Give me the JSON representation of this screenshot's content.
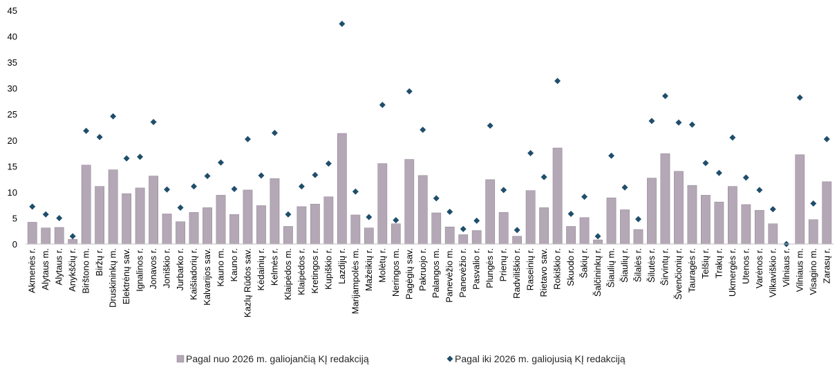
{
  "chart_data": {
    "type": "bar",
    "title": "",
    "xlabel": "",
    "ylabel": "",
    "ylim": [
      0,
      45
    ],
    "y_ticks": [
      0,
      5,
      10,
      15,
      20,
      25,
      30,
      35,
      40,
      45
    ],
    "grid": false,
    "legend_position": "bottom",
    "categories": [
      "Akmenės r.",
      "Alytaus m.",
      "Alytaus r.",
      "Anykščių r.",
      "Birštono m.",
      "Biržų r.",
      "Druskininkų m.",
      "Elektrėnų sav.",
      "Ignalinos r.",
      "Jonavos r.",
      "Joniškio r.",
      "Jurbarko r.",
      "Kaišiadorių r.",
      "Kalvarijos sav.",
      "Kauno m.",
      "Kauno r.",
      "Kazlų Rūdos sav.",
      "Kėdainių r.",
      "Kelmės r.",
      "Klaipėdos m.",
      "Klaipėdos r.",
      "Kretingos r.",
      "Kupiškio r.",
      "Lazdijų r.",
      "Marijampolės m.",
      "Mažeikių r.",
      "Molėtų r.",
      "Neringos m.",
      "Pagėgių sav.",
      "Pakruojo r.",
      "Palangos m.",
      "Panevėžio m.",
      "Panevėžio r.",
      "Pasvalio r.",
      "Plungės r.",
      "Prienų r.",
      "Radviliškio r.",
      "Raseinių r.",
      "Rietavo sav.",
      "Rokiškio r.",
      "Skuodo r.",
      "Šakių r.",
      "Šalčininkų r.",
      "Šiaulių m.",
      "Šiaulių r.",
      "Šilalės r.",
      "Šilutės r.",
      "Širvintų r.",
      "Švenčionių r.",
      "Tauragės r.",
      "Telšių r.",
      "Trakų r.",
      "Ukmergės r.",
      "Utenos r.",
      "Varėnos r.",
      "Vilkaviškio r.",
      "Vilniaus r.",
      "Vilniaus m.",
      "Visagino m.",
      "Zarasų r."
    ],
    "series": [
      {
        "name": "Pagal nuo 2026 m. galiojančią KĮ redakciją",
        "type": "bar",
        "color": "#b4a7b6",
        "values": [
          4.2,
          3.1,
          3.2,
          0.9,
          15.2,
          11.1,
          14.3,
          9.7,
          10.8,
          13.1,
          5.8,
          4.3,
          6.1,
          7.0,
          9.4,
          5.7,
          10.4,
          7.4,
          12.6,
          3.4,
          7.2,
          7.7,
          9.1,
          21.3,
          5.6,
          3.1,
          15.5,
          3.9,
          16.3,
          13.2,
          6.0,
          3.3,
          1.8,
          2.6,
          12.4,
          6.1,
          1.5,
          10.3,
          7.0,
          18.5,
          3.4,
          5.1,
          0.8,
          8.9,
          6.6,
          2.8,
          12.7,
          17.4,
          14.0,
          11.3,
          9.4,
          8.1,
          11.1,
          7.6,
          6.5,
          3.9,
          0.0,
          17.2,
          4.7,
          12.0
        ]
      },
      {
        "name": "Pagal iki 2026 m. galiojusią KĮ redakciją",
        "type": "scatter",
        "marker": "diamond",
        "color": "#1f4e6b",
        "values": [
          7.2,
          5.7,
          5.0,
          1.5,
          21.8,
          20.6,
          24.6,
          16.5,
          16.8,
          23.5,
          10.5,
          7.0,
          11.1,
          13.1,
          15.7,
          10.6,
          20.2,
          13.2,
          21.4,
          5.7,
          11.1,
          13.3,
          15.5,
          42.4,
          10.1,
          5.2,
          26.8,
          4.6,
          29.4,
          22.0,
          8.8,
          6.2,
          2.9,
          4.5,
          22.8,
          10.4,
          2.7,
          17.5,
          12.9,
          31.4,
          5.8,
          9.1,
          1.5,
          17.0,
          10.9,
          4.8,
          23.7,
          28.5,
          23.4,
          23.0,
          15.6,
          13.7,
          20.5,
          12.8,
          10.4,
          6.7,
          0.0,
          28.2,
          7.8,
          20.2
        ]
      }
    ]
  }
}
